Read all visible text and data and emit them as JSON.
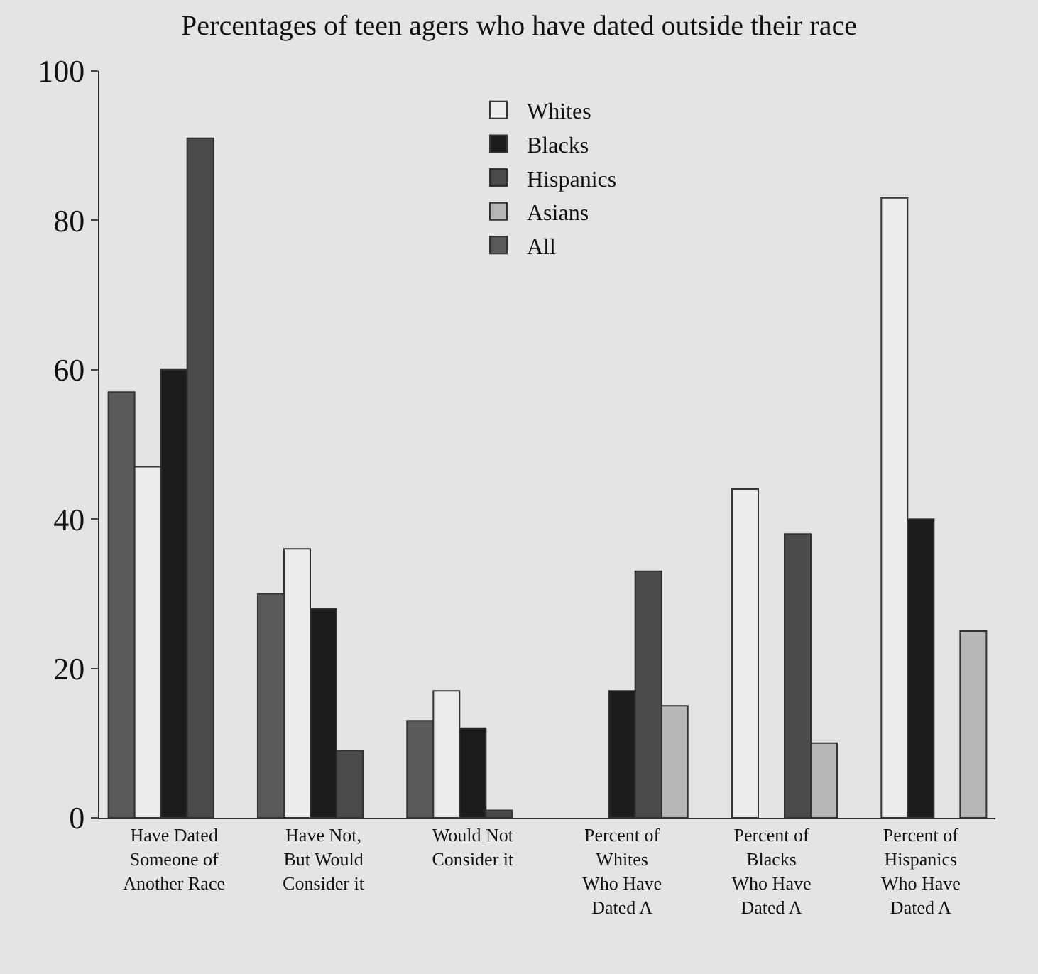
{
  "chart_data": {
    "type": "bar",
    "title": "Percentages of teen agers who have dated outside their race",
    "categories": [
      "Have Dated\nSomeone of\nAnother Race",
      "Have Not,\nBut Would\nConsider it",
      "Would Not\nConsider it",
      "Percent of\nWhites\nWho Have\nDated A",
      "Percent of\nBlacks\nWho Have\nDated A",
      "Percent of\nHispanics\nWho Have\nDated A"
    ],
    "series": [
      {
        "name": "All",
        "color": "#5a5a5a",
        "values": [
          57,
          30,
          13,
          null,
          null,
          null
        ]
      },
      {
        "name": "Whites",
        "color": "#ececec",
        "values": [
          47,
          36,
          17,
          null,
          44,
          83
        ]
      },
      {
        "name": "Blacks",
        "color": "#1c1c1c",
        "values": [
          60,
          28,
          12,
          17,
          null,
          40
        ]
      },
      {
        "name": "Hispanics",
        "color": "#4a4a4a",
        "values": [
          91,
          9,
          1,
          33,
          38,
          null
        ]
      },
      {
        "name": "Asians",
        "color": "#b8b8b8",
        "values": [
          null,
          null,
          null,
          15,
          10,
          25
        ]
      }
    ],
    "ylim": [
      0,
      100
    ],
    "yticks": [
      0,
      20,
      40,
      60,
      80,
      100
    ],
    "grid": false,
    "legend": "top"
  }
}
